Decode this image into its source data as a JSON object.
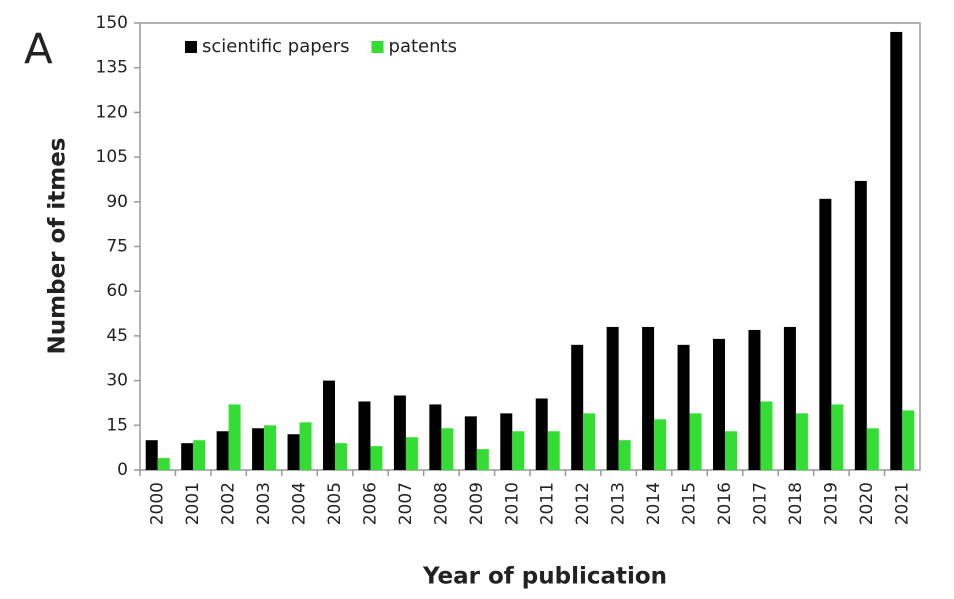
{
  "chart_data": {
    "type": "bar",
    "panel_label": "A",
    "y_label": "Number of itmes",
    "x_label": "Year of publication",
    "categories": [
      "2000",
      "2001",
      "2002",
      "2003",
      "2004",
      "2005",
      "2006",
      "2007",
      "2008",
      "2009",
      "2010",
      "2011",
      "2012",
      "2013",
      "2014",
      "2015",
      "2016",
      "2017",
      "2018",
      "2019",
      "2020",
      "2021"
    ],
    "series": [
      {
        "name": "scientific papers",
        "color": "#000000",
        "values": [
          10,
          9,
          13,
          14,
          12,
          30,
          23,
          25,
          22,
          18,
          19,
          24,
          42,
          48,
          48,
          42,
          44,
          47,
          48,
          91,
          97,
          147
        ]
      },
      {
        "name": "patents",
        "color": "#33dd33",
        "values": [
          4,
          10,
          22,
          15,
          16,
          9,
          8,
          11,
          14,
          7,
          13,
          13,
          19,
          10,
          17,
          19,
          13,
          23,
          19,
          22,
          14,
          20
        ]
      }
    ],
    "ylim": [
      0,
      150
    ],
    "yticks": [
      0,
      15,
      30,
      45,
      60,
      75,
      90,
      105,
      120,
      135,
      150
    ],
    "legend": "upper left",
    "grid": false
  }
}
